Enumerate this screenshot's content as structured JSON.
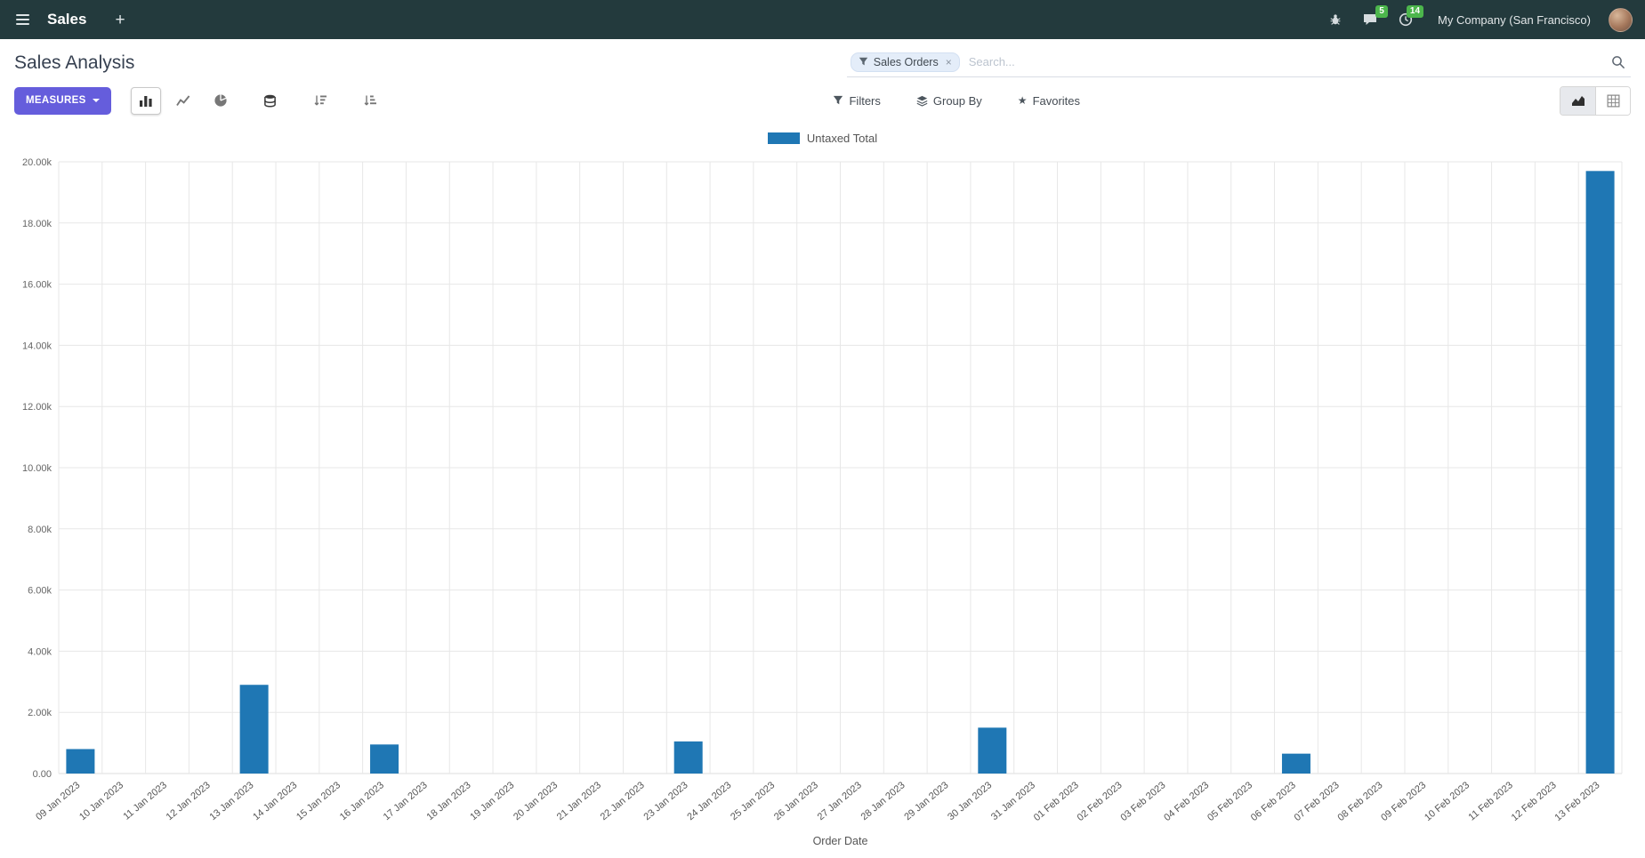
{
  "colors": {
    "navbar_bg": "#233a3d",
    "primary_button": "#655ddc",
    "badge": "#4cb64c",
    "bar": "#1f77b4"
  },
  "icons": {
    "plus": "+",
    "star": "★",
    "close": "×"
  },
  "navbar": {
    "app_name": "Sales",
    "message_badge": "5",
    "activity_badge": "14",
    "company": "My Company (San Francisco)"
  },
  "control_panel": {
    "title": "Sales Analysis",
    "measures_label": "MEASURES",
    "filters_label": "Filters",
    "group_by_label": "Group By",
    "favorites_label": "Favorites",
    "search": {
      "facet_label": "Sales Orders",
      "placeholder": "Search..."
    }
  },
  "chart_data": {
    "type": "bar",
    "title": "",
    "xlabel": "Order Date",
    "ylabel": "",
    "ylim": [
      0,
      20000
    ],
    "ytick_step": 2000,
    "ytick_labels": [
      "0.00",
      "2.00k",
      "4.00k",
      "6.00k",
      "8.00k",
      "10.00k",
      "12.00k",
      "14.00k",
      "16.00k",
      "18.00k",
      "20.00k"
    ],
    "grid": true,
    "legend_position": "top",
    "categories": [
      "09 Jan 2023",
      "10 Jan 2023",
      "11 Jan 2023",
      "12 Jan 2023",
      "13 Jan 2023",
      "14 Jan 2023",
      "15 Jan 2023",
      "16 Jan 2023",
      "17 Jan 2023",
      "18 Jan 2023",
      "19 Jan 2023",
      "20 Jan 2023",
      "21 Jan 2023",
      "22 Jan 2023",
      "23 Jan 2023",
      "24 Jan 2023",
      "25 Jan 2023",
      "26 Jan 2023",
      "27 Jan 2023",
      "28 Jan 2023",
      "29 Jan 2023",
      "30 Jan 2023",
      "31 Jan 2023",
      "01 Feb 2023",
      "02 Feb 2023",
      "03 Feb 2023",
      "04 Feb 2023",
      "05 Feb 2023",
      "06 Feb 2023",
      "07 Feb 2023",
      "08 Feb 2023",
      "09 Feb 2023",
      "10 Feb 2023",
      "11 Feb 2023",
      "12 Feb 2023",
      "13 Feb 2023"
    ],
    "series": [
      {
        "name": "Untaxed Total",
        "color": "#1f77b4",
        "values": [
          800,
          0,
          0,
          0,
          2900,
          0,
          0,
          950,
          0,
          0,
          0,
          0,
          0,
          0,
          1050,
          0,
          0,
          0,
          0,
          0,
          0,
          1500,
          0,
          0,
          0,
          0,
          0,
          0,
          650,
          0,
          0,
          0,
          0,
          0,
          0,
          19700
        ]
      }
    ]
  }
}
